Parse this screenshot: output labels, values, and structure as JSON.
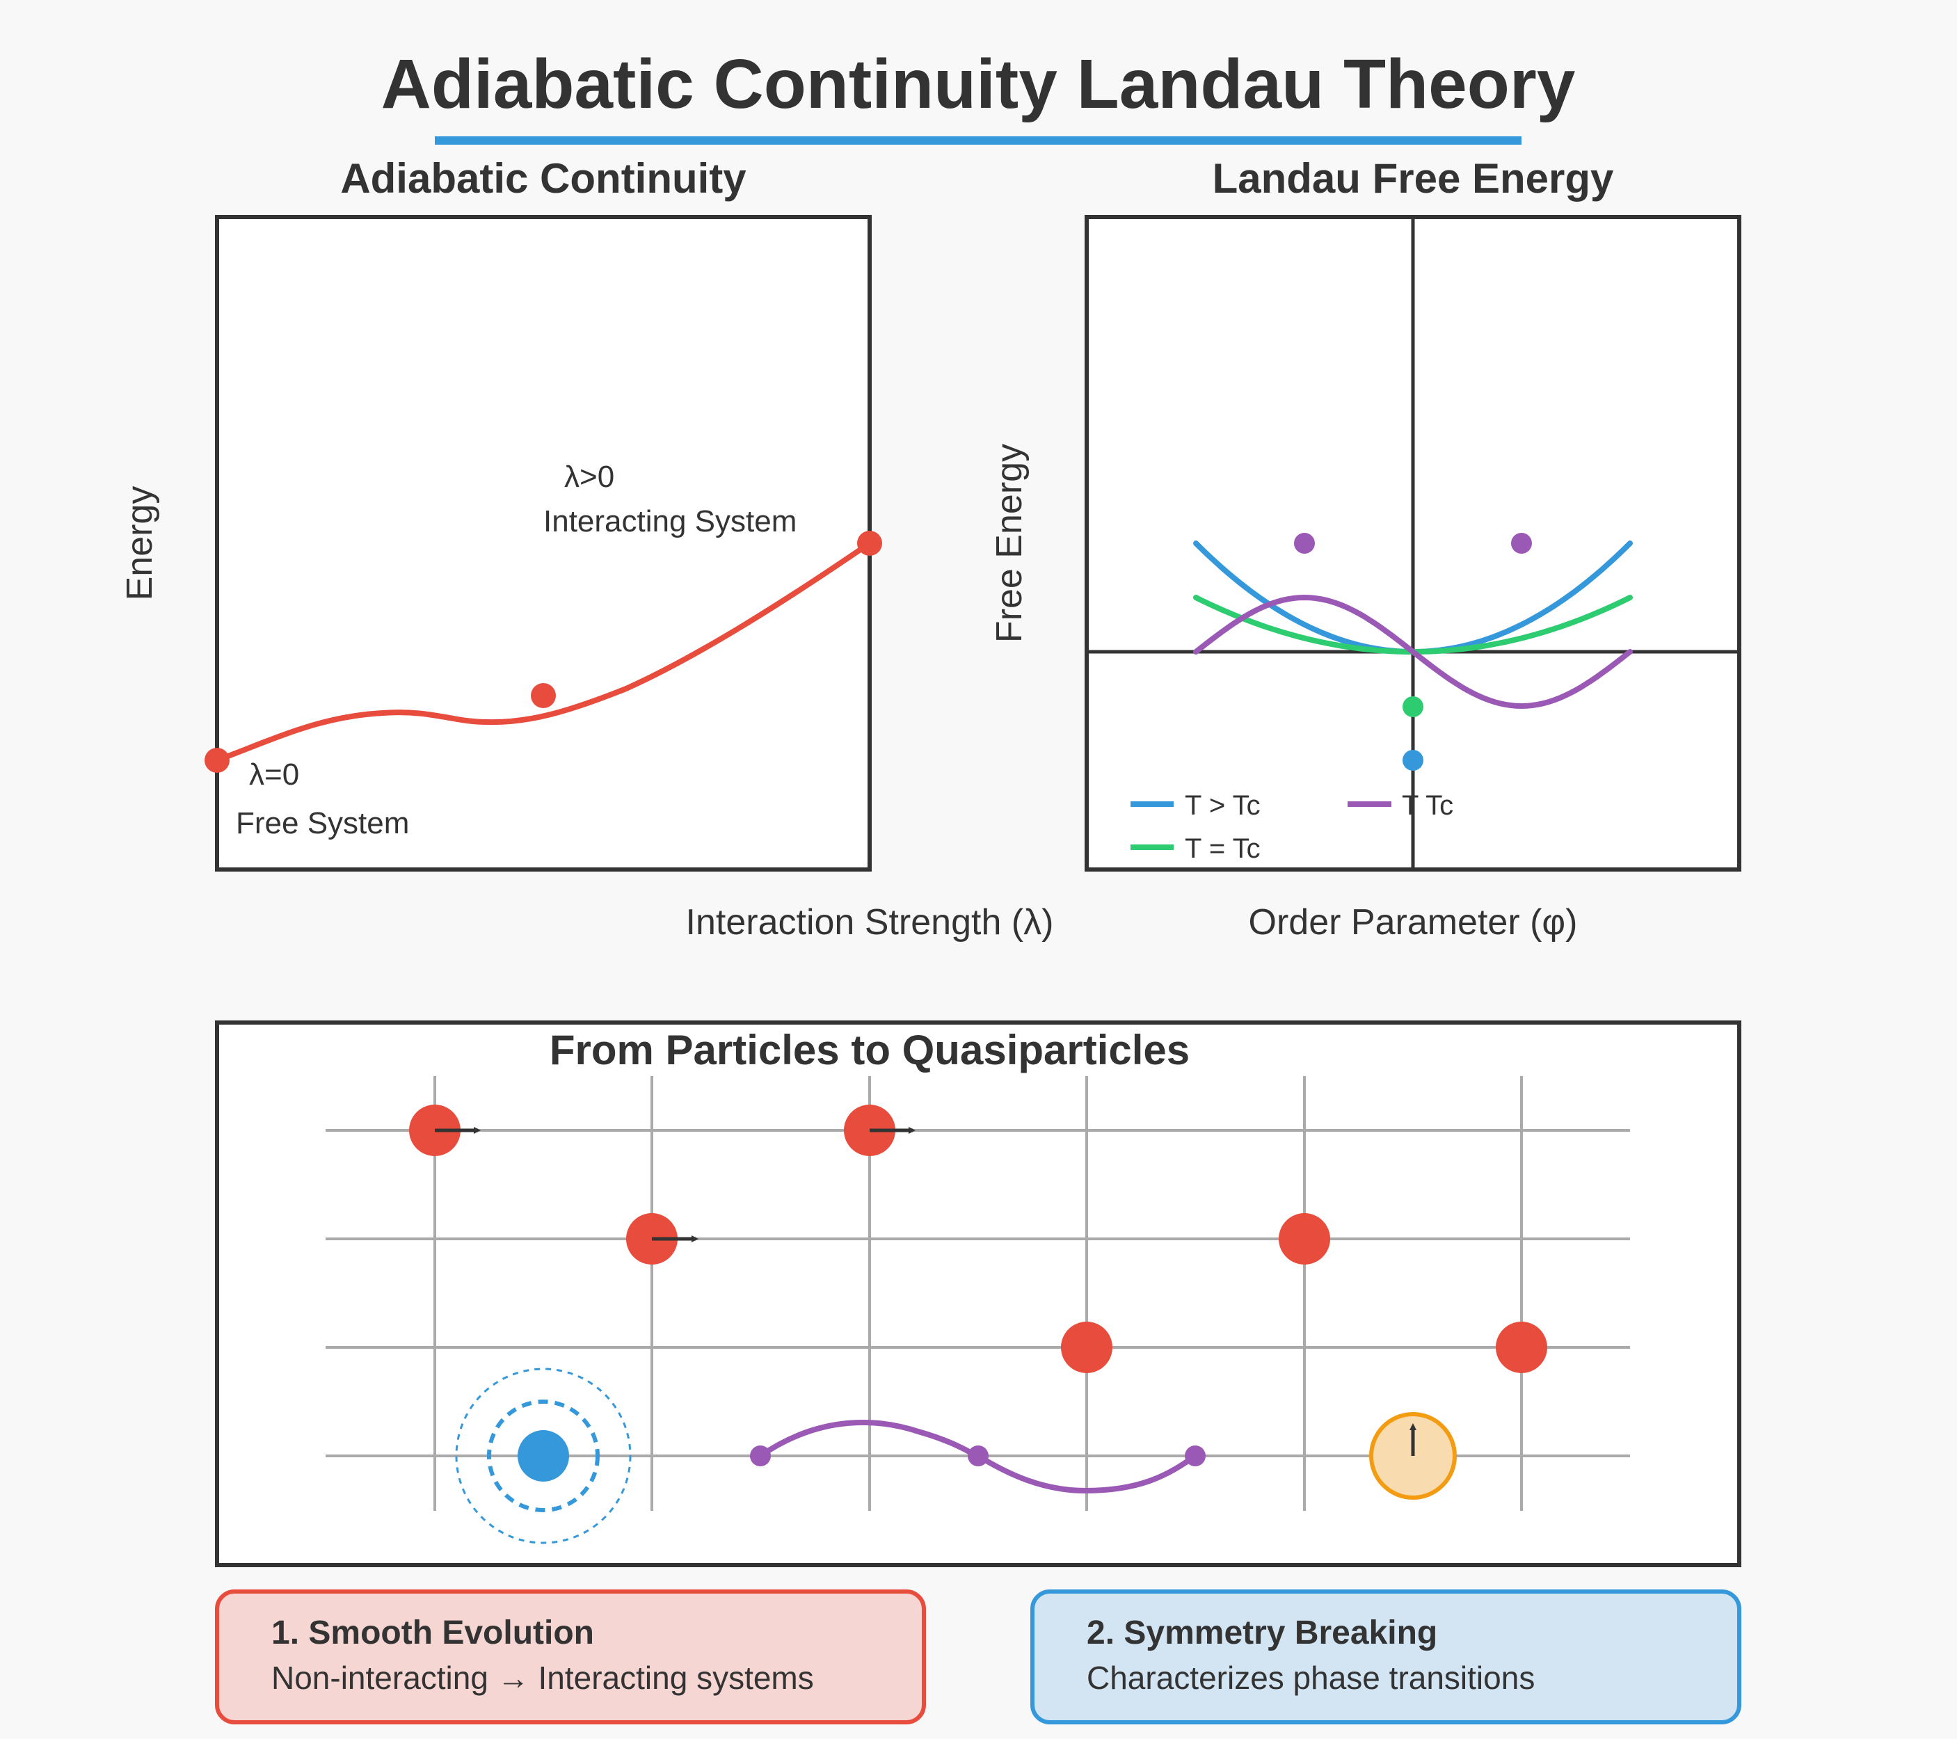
{
  "title": "Adiabatic Continuity Landau Theory",
  "panels": {
    "adiabatic": {
      "title": "Adiabatic Continuity",
      "ylabel": "Energy",
      "xlabel": "Interaction Strength (λ)",
      "start_label_1": "λ=0",
      "start_label_2": "Free System",
      "end_label_1": "λ>0",
      "end_label_2": "Interacting System"
    },
    "landau": {
      "title": "Landau Free Energy",
      "ylabel": "Free Energy",
      "xlabel": "Order Parameter (φ)",
      "legend": [
        "T > Tc",
        "T = Tc",
        "T Tc"
      ]
    },
    "quasi": {
      "title": "From Particles to Quasiparticles"
    }
  },
  "cards": [
    {
      "title": "1. Smooth Evolution",
      "text": "Non-interacting → Interacting systems"
    },
    {
      "title": "2. Symmetry Breaking",
      "text": "Characterizes phase transitions"
    }
  ],
  "colors": {
    "red": "#e74c3c",
    "blue": "#3498db",
    "green": "#2ecc71",
    "purple": "#9b59b6",
    "orange": "#f39c12",
    "text": "#333333"
  }
}
